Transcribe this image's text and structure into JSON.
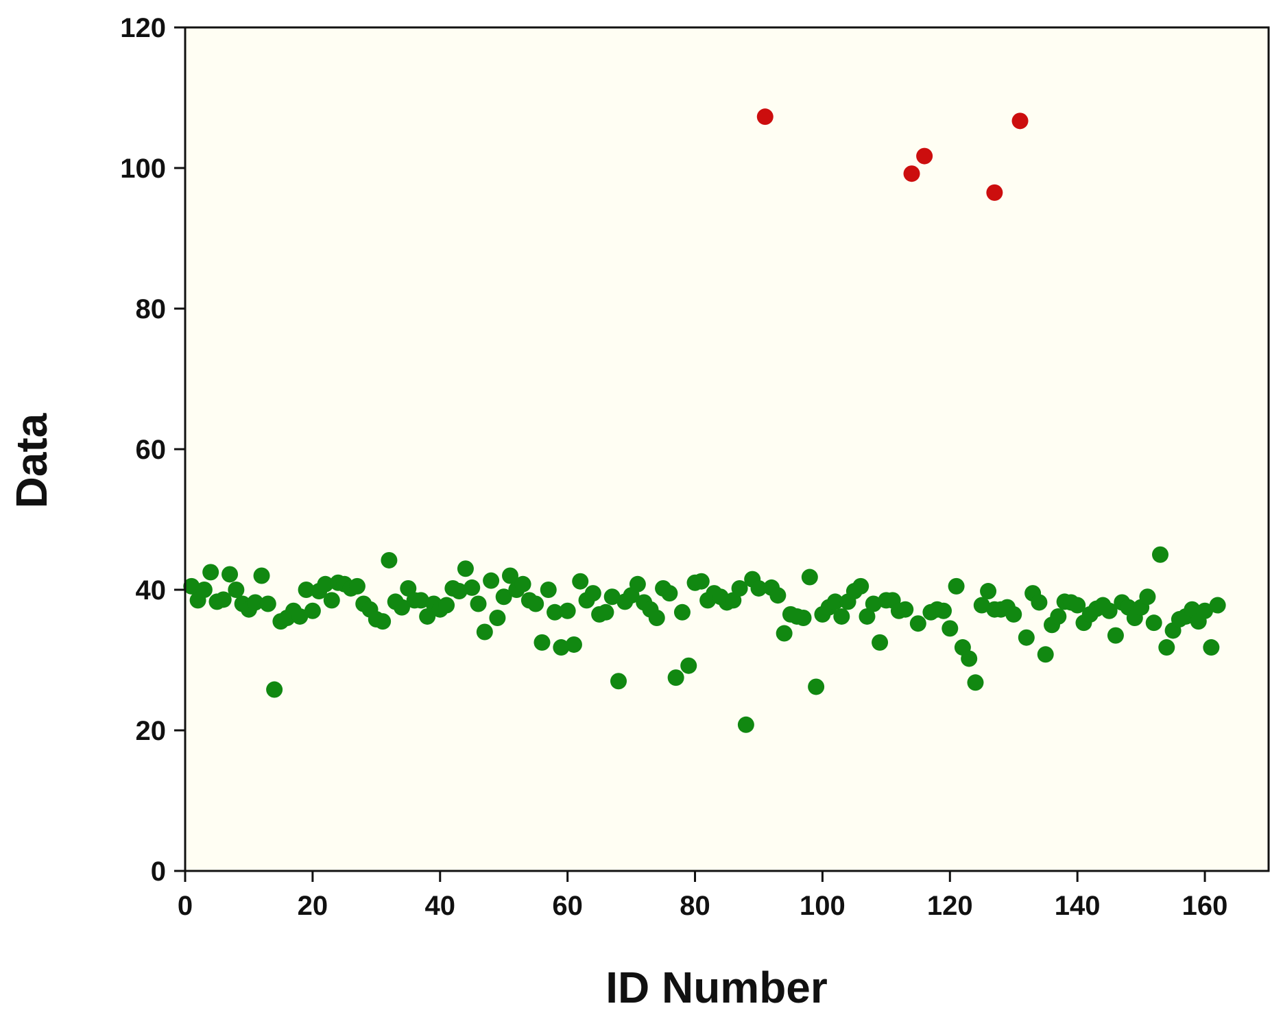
{
  "chart_data": {
    "type": "scatter",
    "title": "",
    "xlabel": "ID Number",
    "ylabel": "Data",
    "xlim": [
      0,
      170
    ],
    "ylim": [
      0,
      120
    ],
    "xticks": [
      0,
      20,
      40,
      60,
      80,
      100,
      120,
      140,
      160
    ],
    "yticks": [
      0,
      20,
      40,
      60,
      80,
      100,
      120
    ],
    "grid": false,
    "legend": "none",
    "colors": {
      "plot_background": "#fffef3",
      "normal": "#118811",
      "outlier": "#cc0e0e",
      "axis": "#111111"
    },
    "series": [
      {
        "color": "#118811",
        "points": [
          [
            1,
            40.5
          ],
          [
            2,
            38.5
          ],
          [
            3,
            40
          ],
          [
            4,
            42.5
          ],
          [
            5,
            38.3
          ],
          [
            6,
            38.6
          ],
          [
            7,
            42.2
          ],
          [
            8,
            40
          ],
          [
            9,
            38
          ],
          [
            10,
            37.2
          ],
          [
            11,
            38.2
          ],
          [
            12,
            42
          ],
          [
            13,
            38
          ],
          [
            14,
            25.8
          ],
          [
            15,
            35.5
          ],
          [
            16,
            36
          ],
          [
            17,
            37
          ],
          [
            18,
            36.2
          ],
          [
            19,
            40
          ],
          [
            20,
            37
          ],
          [
            21,
            39.8
          ],
          [
            22,
            40.8
          ],
          [
            23,
            38.5
          ],
          [
            24,
            41
          ],
          [
            25,
            40.8
          ],
          [
            26,
            40.2
          ],
          [
            27,
            40.5
          ],
          [
            28,
            38
          ],
          [
            29,
            37.2
          ],
          [
            30,
            35.8
          ],
          [
            31,
            35.5
          ],
          [
            32,
            44.2
          ],
          [
            33,
            38.3
          ],
          [
            34,
            37.5
          ],
          [
            35,
            40.2
          ],
          [
            36,
            38.5
          ],
          [
            37,
            38.5
          ],
          [
            38,
            36.2
          ],
          [
            39,
            38
          ],
          [
            40,
            37.2
          ],
          [
            41,
            37.8
          ],
          [
            42,
            40.2
          ],
          [
            43,
            39.8
          ],
          [
            44,
            43
          ],
          [
            45,
            40.3
          ],
          [
            46,
            38
          ],
          [
            47,
            34
          ],
          [
            48,
            41.3
          ],
          [
            49,
            36
          ],
          [
            50,
            39
          ],
          [
            51,
            42
          ],
          [
            52,
            40
          ],
          [
            53,
            40.8
          ],
          [
            54,
            38.5
          ],
          [
            55,
            38
          ],
          [
            56,
            32.5
          ],
          [
            57,
            40
          ],
          [
            58,
            36.8
          ],
          [
            59,
            31.8
          ],
          [
            60,
            37
          ],
          [
            61,
            32.2
          ],
          [
            62,
            41.2
          ],
          [
            63,
            38.5
          ],
          [
            64,
            39.5
          ],
          [
            65,
            36.5
          ],
          [
            66,
            36.8
          ],
          [
            67,
            39
          ],
          [
            68,
            27
          ],
          [
            69,
            38.3
          ],
          [
            70,
            39.2
          ],
          [
            71,
            40.8
          ],
          [
            72,
            38.2
          ],
          [
            73,
            37.2
          ],
          [
            74,
            36
          ],
          [
            75,
            40.2
          ],
          [
            76,
            39.5
          ],
          [
            77,
            27.5
          ],
          [
            78,
            36.8
          ],
          [
            79,
            29.2
          ],
          [
            80,
            41
          ],
          [
            81,
            41.2
          ],
          [
            82,
            38.5
          ],
          [
            83,
            39.5
          ],
          [
            84,
            39
          ],
          [
            85,
            38.2
          ],
          [
            86,
            38.5
          ],
          [
            87,
            40.2
          ],
          [
            88,
            20.8
          ],
          [
            89,
            41.5
          ],
          [
            90,
            40.2
          ],
          [
            92,
            40.3
          ],
          [
            93,
            39.2
          ],
          [
            94,
            33.8
          ],
          [
            95,
            36.5
          ],
          [
            96,
            36.2
          ],
          [
            97,
            36
          ],
          [
            98,
            41.8
          ],
          [
            99,
            26.2
          ],
          [
            100,
            36.5
          ],
          [
            101,
            37.5
          ],
          [
            102,
            38.3
          ],
          [
            103,
            36.2
          ],
          [
            104,
            38.3
          ],
          [
            105,
            39.8
          ],
          [
            106,
            40.5
          ],
          [
            107,
            36.2
          ],
          [
            108,
            38
          ],
          [
            109,
            32.5
          ],
          [
            110,
            38.5
          ],
          [
            111,
            38.5
          ],
          [
            112,
            37
          ],
          [
            113,
            37.2
          ],
          [
            115,
            35.2
          ],
          [
            117,
            36.8
          ],
          [
            118,
            37.2
          ],
          [
            119,
            37
          ],
          [
            120,
            34.5
          ],
          [
            121,
            40.5
          ],
          [
            122,
            31.8
          ],
          [
            123,
            30.2
          ],
          [
            124,
            26.8
          ],
          [
            125,
            37.8
          ],
          [
            126,
            39.8
          ],
          [
            127,
            37.2
          ],
          [
            128,
            37.2
          ],
          [
            129,
            37.5
          ],
          [
            130,
            36.5
          ],
          [
            132,
            33.2
          ],
          [
            133,
            39.5
          ],
          [
            134,
            38.2
          ],
          [
            135,
            30.8
          ],
          [
            136,
            35
          ],
          [
            137,
            36.2
          ],
          [
            138,
            38.3
          ],
          [
            139,
            38.2
          ],
          [
            140,
            37.8
          ],
          [
            141,
            35.3
          ],
          [
            142,
            36.5
          ],
          [
            143,
            37.3
          ],
          [
            144,
            37.8
          ],
          [
            145,
            37
          ],
          [
            146,
            33.5
          ],
          [
            147,
            38.2
          ],
          [
            148,
            37.5
          ],
          [
            149,
            36
          ],
          [
            150,
            37.5
          ],
          [
            151,
            39
          ],
          [
            152,
            35.3
          ],
          [
            153,
            45
          ],
          [
            154,
            31.8
          ],
          [
            155,
            34.2
          ],
          [
            156,
            35.8
          ],
          [
            157,
            36.2
          ],
          [
            158,
            37.2
          ],
          [
            159,
            35.5
          ],
          [
            160,
            37
          ],
          [
            161,
            31.8
          ],
          [
            162,
            37.8
          ]
        ]
      },
      {
        "color": "#cc0e0e",
        "points": [
          [
            91,
            107.3
          ],
          [
            114,
            99.2
          ],
          [
            116,
            101.7
          ],
          [
            127,
            96.5
          ],
          [
            131,
            106.7
          ]
        ]
      }
    ]
  }
}
